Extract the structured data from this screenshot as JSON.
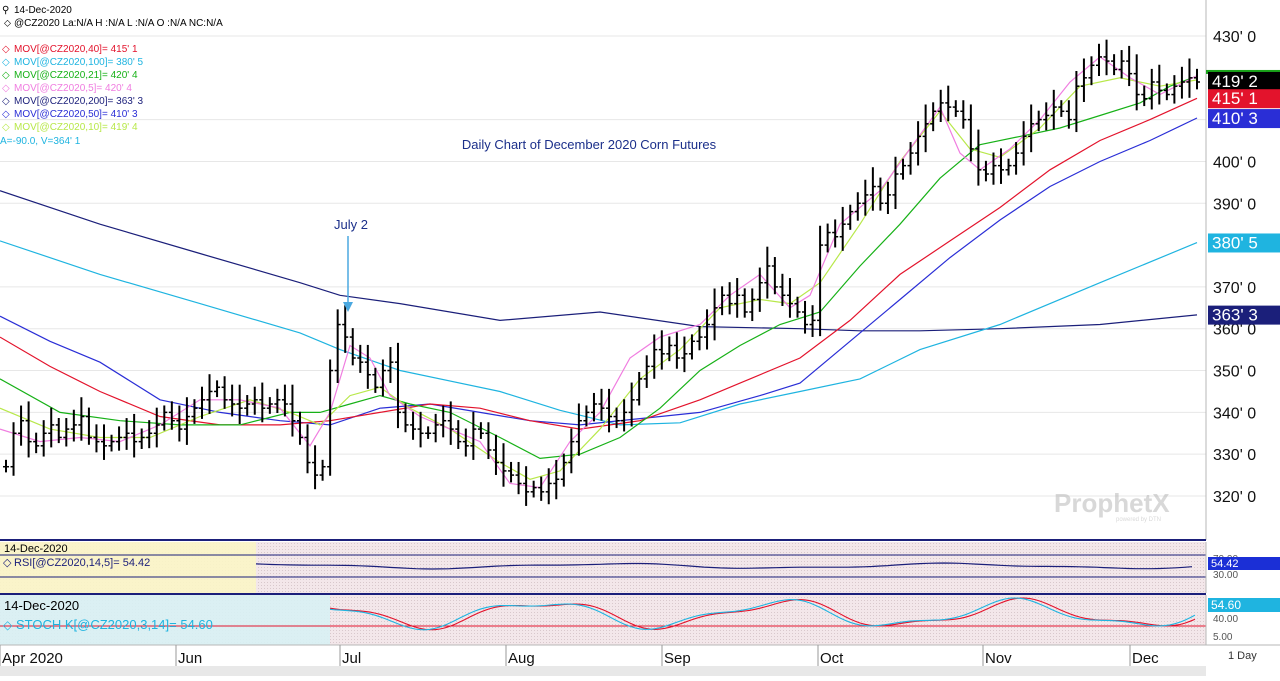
{
  "header": {
    "date": "14-Dec-2020",
    "quote_line": "@CZ2020 La:N/A H :N/A L :N/A O :N/A NC:N/A",
    "studies": [
      {
        "text": "MOV[@CZ2020,40]= 415' 1",
        "color": "#e3132c",
        "icon": "diamond-icon"
      },
      {
        "text": "MOV[@CZ2020,100]= 380' 5",
        "color": "#1fb4e0",
        "icon": "diamond-icon"
      },
      {
        "text": "MOV[@CZ2020,21]= 420' 4",
        "color": "#17b117",
        "icon": "diamond-icon"
      },
      {
        "text": "MOV[@CZ2020,5]= 420' 4",
        "color": "#f07de0",
        "icon": "diamond-icon"
      },
      {
        "text": "MOV[@CZ2020,200]= 363' 3",
        "color": "#1b1f7a",
        "icon": "diamond-icon"
      },
      {
        "text": "MOV[@CZ2020,50]= 410' 3",
        "color": "#2a2ed6",
        "icon": "diamond-icon"
      },
      {
        "text": "MOV[@CZ2020,10]= 419' 4",
        "color": "#b8e84a",
        "icon": "diamond-icon"
      }
    ],
    "av_line": "A=-90.0, V=364' 1"
  },
  "chart_data": [
    {
      "type": "ohlc",
      "title": "Daily Chart of December 2020 Corn Futures",
      "annotation": "July 2",
      "y_ticks": [
        "320' 0",
        "330' 0",
        "340' 0",
        "350' 0",
        "360' 0",
        "370' 0",
        "390' 0",
        "400' 0",
        "410' 0",
        "430' 0"
      ],
      "y_tick_values": [
        320,
        330,
        340,
        350,
        360,
        370,
        390,
        400,
        410,
        430
      ],
      "ylim": [
        312,
        435
      ],
      "x_months": [
        "Apr 2020",
        "Jun",
        "Jul",
        "Aug",
        "Sep",
        "Oct",
        "Nov",
        "Dec"
      ],
      "period_label": "1 Day",
      "grid": true,
      "watermark": "ProphetX",
      "last_price_tag": "419' 2",
      "close_approx": [
        327,
        335,
        338,
        333,
        332,
        335,
        337,
        334,
        336,
        337,
        339,
        334,
        333,
        332,
        333,
        334,
        335,
        333,
        334,
        335,
        337,
        340,
        338,
        336,
        339,
        341,
        343,
        345,
        346,
        343,
        342,
        341,
        342,
        343,
        341,
        342,
        343,
        342,
        338,
        334,
        328,
        325,
        327,
        350,
        361,
        358,
        353,
        352,
        349,
        346,
        350,
        352,
        340,
        337,
        336,
        335,
        335,
        337,
        338,
        336,
        333,
        332,
        336,
        335,
        331,
        328,
        326,
        325,
        323,
        321,
        322,
        321,
        323,
        324,
        328,
        333,
        338,
        340,
        342,
        341,
        339,
        338,
        340,
        343,
        348,
        351,
        355,
        354,
        356,
        353,
        354,
        357,
        358,
        361,
        365,
        368,
        366,
        368,
        364,
        367,
        371,
        375,
        370,
        368,
        366,
        364,
        361,
        362,
        380,
        383,
        382,
        385,
        388,
        390,
        392,
        394,
        390,
        392,
        397,
        399,
        402,
        406,
        409,
        412,
        414,
        413,
        412,
        410,
        403,
        398,
        397,
        399,
        398,
        399,
        402,
        406,
        409,
        410,
        411,
        413,
        412,
        410,
        418,
        420,
        423,
        425,
        424,
        422,
        424,
        421,
        416,
        415,
        419,
        417,
        416,
        418,
        419,
        420,
        419
      ],
      "series": [
        {
          "name": "MOV 200",
          "color": "#1b1f7a",
          "points": [
            [
              0,
              393
            ],
            [
              100,
              385
            ],
            [
              200,
              378
            ],
            [
              300,
              371
            ],
            [
              340,
              368
            ],
            [
              400,
              366
            ],
            [
              500,
              362
            ],
            [
              600,
              364
            ],
            [
              700,
              360.5
            ],
            [
              800,
              360
            ],
            [
              860,
              359.5
            ],
            [
              920,
              359.5
            ],
            [
              1000,
              360
            ],
            [
              1100,
              361
            ],
            [
              1197,
              363.3
            ]
          ]
        },
        {
          "name": "MOV 100",
          "color": "#1fb4e0",
          "points": [
            [
              0,
              381
            ],
            [
              100,
              373
            ],
            [
              200,
              366
            ],
            [
              300,
              359
            ],
            [
              340,
              355
            ],
            [
              400,
              350
            ],
            [
              500,
              345
            ],
            [
              560,
              340.5
            ],
            [
              620,
              337
            ],
            [
              680,
              337.5
            ],
            [
              740,
              342
            ],
            [
              800,
              345
            ],
            [
              860,
              348
            ],
            [
              920,
              355
            ],
            [
              1000,
              361
            ],
            [
              1100,
              371
            ],
            [
              1197,
              380.6
            ]
          ]
        },
        {
          "name": "MOV 50",
          "color": "#2a2ed6",
          "points": [
            [
              0,
              363
            ],
            [
              50,
              357
            ],
            [
              100,
              352
            ],
            [
              160,
              343
            ],
            [
              220,
              340
            ],
            [
              280,
              338
            ],
            [
              330,
              337
            ],
            [
              380,
              341
            ],
            [
              430,
              342
            ],
            [
              480,
              340
            ],
            [
              530,
              338
            ],
            [
              580,
              337
            ],
            [
              640,
              338.5
            ],
            [
              700,
              340
            ],
            [
              760,
              344
            ],
            [
              800,
              347
            ],
            [
              850,
              357
            ],
            [
              900,
              367
            ],
            [
              950,
              377
            ],
            [
              1000,
              386
            ],
            [
              1050,
              394
            ],
            [
              1100,
              400
            ],
            [
              1150,
              405
            ],
            [
              1197,
              410.4
            ]
          ]
        },
        {
          "name": "MOV 40",
          "color": "#e3132c",
          "points": [
            [
              0,
              358
            ],
            [
              50,
              351
            ],
            [
              100,
              345
            ],
            [
              160,
              339
            ],
            [
              220,
              337
            ],
            [
              280,
              337
            ],
            [
              330,
              338
            ],
            [
              380,
              340
            ],
            [
              430,
              342
            ],
            [
              480,
              341
            ],
            [
              530,
              338
            ],
            [
              580,
              336
            ],
            [
              640,
              338
            ],
            [
              700,
              343
            ],
            [
              750,
              348
            ],
            [
              800,
              353
            ],
            [
              850,
              362
            ],
            [
              900,
              373
            ],
            [
              950,
              381
            ],
            [
              1000,
              389
            ],
            [
              1050,
              398
            ],
            [
              1100,
              405
            ],
            [
              1150,
              410
            ],
            [
              1197,
              415.1
            ]
          ]
        },
        {
          "name": "MOV 21",
          "color": "#17b117",
          "points": [
            [
              0,
              348
            ],
            [
              60,
              340
            ],
            [
              120,
              338
            ],
            [
              180,
              337
            ],
            [
              240,
              337
            ],
            [
              290,
              340
            ],
            [
              320,
              340
            ],
            [
              350,
              342
            ],
            [
              380,
              344
            ],
            [
              410,
              342
            ],
            [
              450,
              340
            ],
            [
              500,
              334
            ],
            [
              540,
              329
            ],
            [
              580,
              330
            ],
            [
              620,
              334
            ],
            [
              660,
              341
            ],
            [
              700,
              350
            ],
            [
              740,
              356
            ],
            [
              780,
              361
            ],
            [
              820,
              364
            ],
            [
              860,
              375
            ],
            [
              900,
              385
            ],
            [
              940,
              396
            ],
            [
              980,
              404
            ],
            [
              1020,
              406
            ],
            [
              1060,
              408
            ],
            [
              1100,
              411
            ],
            [
              1140,
              414
            ],
            [
              1170,
              418
            ],
            [
              1197,
              420.4
            ]
          ]
        },
        {
          "name": "MOV 10",
          "color": "#b8e84a",
          "points": [
            [
              0,
              341
            ],
            [
              50,
              336
            ],
            [
              100,
              334
            ],
            [
              150,
              334
            ],
            [
              200,
              339
            ],
            [
              250,
              343
            ],
            [
              290,
              340
            ],
            [
              320,
              337
            ],
            [
              350,
              344
            ],
            [
              380,
              346
            ],
            [
              410,
              341
            ],
            [
              450,
              336
            ],
            [
              500,
              328
            ],
            [
              530,
              324
            ],
            [
              560,
              326
            ],
            [
              600,
              336
            ],
            [
              640,
              348
            ],
            [
              680,
              355
            ],
            [
              720,
              365
            ],
            [
              760,
              367
            ],
            [
              790,
              366
            ],
            [
              820,
              371
            ],
            [
              860,
              385
            ],
            [
              900,
              400
            ],
            [
              940,
              412
            ],
            [
              970,
              403
            ],
            [
              1000,
              401
            ],
            [
              1040,
              408
            ],
            [
              1080,
              418
            ],
            [
              1120,
              420
            ],
            [
              1160,
              418
            ],
            [
              1197,
              419.5
            ]
          ]
        },
        {
          "name": "MOV 5",
          "color": "#f07de0",
          "points": [
            [
              0,
              336
            ],
            [
              40,
              333
            ],
            [
              80,
              334
            ],
            [
              120,
              333
            ],
            [
              160,
              337
            ],
            [
              200,
              343
            ],
            [
              240,
              343
            ],
            [
              280,
              341
            ],
            [
              310,
              332
            ],
            [
              330,
              340
            ],
            [
              350,
              356
            ],
            [
              370,
              353
            ],
            [
              390,
              344
            ],
            [
              420,
              339
            ],
            [
              450,
              336
            ],
            [
              480,
              333
            ],
            [
              510,
              323
            ],
            [
              540,
              322
            ],
            [
              570,
              333
            ],
            [
              600,
              340
            ],
            [
              630,
              353
            ],
            [
              660,
              358
            ],
            [
              700,
              361
            ],
            [
              730,
              368
            ],
            [
              760,
              373
            ],
            [
              790,
              365
            ],
            [
              810,
              368
            ],
            [
              840,
              385
            ],
            [
              880,
              393
            ],
            [
              910,
              403
            ],
            [
              940,
              413
            ],
            [
              960,
              402
            ],
            [
              980,
              398
            ],
            [
              1010,
              403
            ],
            [
              1040,
              410
            ],
            [
              1070,
              419
            ],
            [
              1100,
              425
            ],
            [
              1130,
              420
            ],
            [
              1160,
              416
            ],
            [
              1197,
              420.5
            ]
          ]
        }
      ]
    },
    {
      "type": "line",
      "title": "RSI",
      "date": "14-Dec-2020",
      "label": "RSI[@CZ2020,14,5]= 54.42",
      "value_tag": "54.42",
      "y_ticks": [
        "70.00",
        "30.00"
      ],
      "y_tick_values": [
        70,
        30
      ],
      "ylim": [
        0,
        100
      ]
    },
    {
      "type": "line",
      "title": "STOCH",
      "date": "14-Dec-2020",
      "label": "STOCH K[@CZ2020,3,14]= 54.60",
      "value_tag": "54.60",
      "y_ticks": [
        "40.00",
        "5.00"
      ],
      "y_tick_values": [
        40,
        5
      ],
      "ylim": [
        0,
        100
      ]
    }
  ]
}
